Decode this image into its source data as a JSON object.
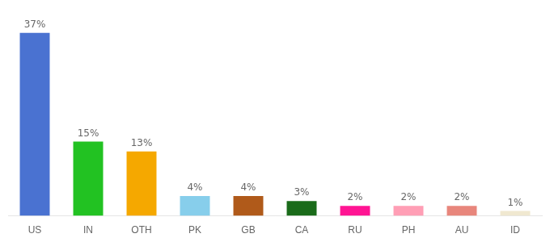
{
  "chart_data": {
    "type": "bar",
    "categories": [
      "US",
      "IN",
      "OTH",
      "PK",
      "GB",
      "CA",
      "RU",
      "PH",
      "AU",
      "ID"
    ],
    "values": [
      37,
      15,
      13,
      4,
      4,
      3,
      2,
      2,
      2,
      1
    ],
    "value_labels": [
      "37%",
      "15%",
      "13%",
      "4%",
      "4%",
      "3%",
      "2%",
      "2%",
      "2%",
      "1%"
    ],
    "colors": [
      "#4a72d1",
      "#22c222",
      "#f5a800",
      "#87ceeb",
      "#b05a1a",
      "#1a6b1a",
      "#ff1493",
      "#ff9eb5",
      "#e8867c",
      "#f0e8d0"
    ],
    "ylim": [
      0,
      42
    ],
    "grid": false,
    "data_labels": true,
    "tick_labels": "x"
  }
}
